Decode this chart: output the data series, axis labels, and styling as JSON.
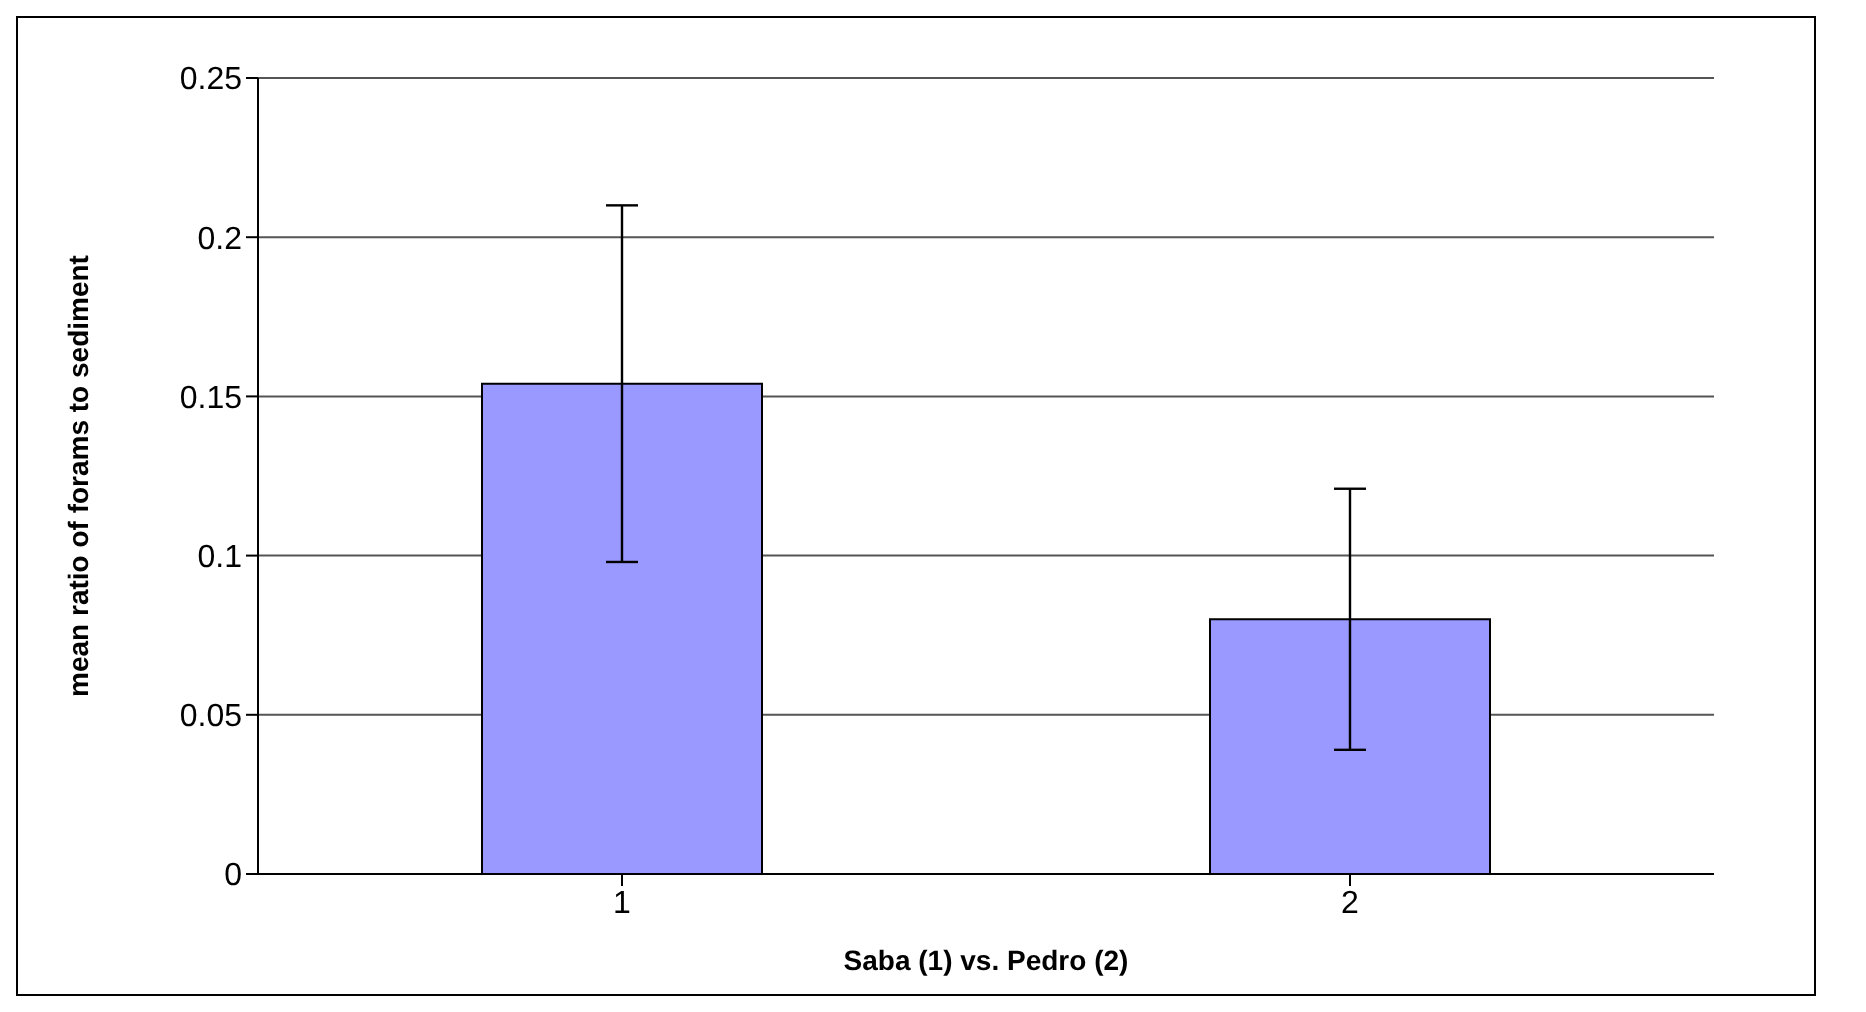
{
  "chart_data": {
    "type": "bar",
    "xlabel": "Saba (1) vs. Pedro (2)",
    "ylabel": "mean ratio of forams to sediment",
    "categories": [
      "1",
      "2"
    ],
    "values": [
      0.154,
      0.08
    ],
    "errors": [
      0.056,
      0.041
    ],
    "color": "#9999ff",
    "ylim": [
      0,
      0.25
    ],
    "yticks": [
      0,
      0.05,
      0.1,
      0.15,
      0.2,
      0.25
    ],
    "grid": "y",
    "legend": false
  }
}
